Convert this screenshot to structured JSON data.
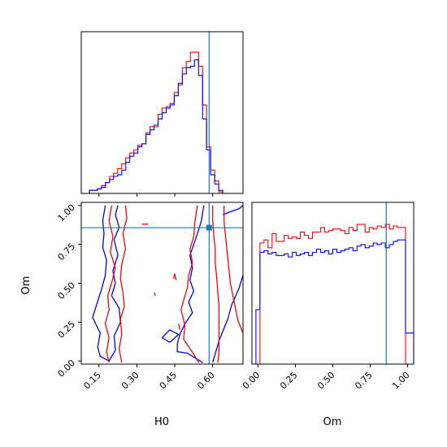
{
  "chart_data": [
    {
      "panel": "H0 marginal",
      "type": "step-histogram",
      "xlim": [
        0.08,
        0.72
      ],
      "x_ticks": [
        0.15,
        0.3,
        0.45,
        0.6
      ],
      "y_ticks_shown": false,
      "truth_x": 0.586,
      "bin_edges": [
        0.08,
        0.096,
        0.112,
        0.128,
        0.144,
        0.16,
        0.176,
        0.192,
        0.208,
        0.224,
        0.24,
        0.256,
        0.272,
        0.288,
        0.304,
        0.32,
        0.336,
        0.352,
        0.368,
        0.384,
        0.4,
        0.416,
        0.432,
        0.448,
        0.464,
        0.48,
        0.496,
        0.512,
        0.528,
        0.544,
        0.56,
        0.576,
        0.592,
        0.608,
        0.624,
        0.64,
        0.656,
        0.672,
        0.688,
        0.704,
        0.72
      ],
      "series": [
        {
          "color": "#ff0000",
          "values": [
            0.0,
            0.0,
            0.02,
            0.02,
            0.03,
            0.05,
            0.07,
            0.11,
            0.13,
            0.16,
            0.19,
            0.23,
            0.26,
            0.28,
            0.31,
            0.32,
            0.39,
            0.43,
            0.43,
            0.51,
            0.55,
            0.56,
            0.58,
            0.65,
            0.7,
            0.81,
            0.85,
            0.91,
            0.91,
            0.82,
            0.57,
            0.3,
            0.15,
            0.08,
            0.01,
            0.0,
            0.0,
            0.0,
            0.0,
            0.0
          ]
        },
        {
          "color": "#0000ff",
          "values": [
            0.0,
            0.0,
            0.02,
            0.02,
            0.03,
            0.04,
            0.07,
            0.09,
            0.11,
            0.12,
            0.15,
            0.2,
            0.24,
            0.26,
            0.3,
            0.32,
            0.38,
            0.41,
            0.44,
            0.48,
            0.52,
            0.55,
            0.57,
            0.63,
            0.71,
            0.77,
            0.81,
            0.82,
            0.86,
            0.76,
            0.48,
            0.28,
            0.12,
            0.06,
            0.02,
            0.0,
            0.0,
            0.0,
            0.0,
            0.0
          ]
        }
      ]
    },
    {
      "panel": "H0 vs Om joint",
      "type": "contour",
      "xlabel": "H0",
      "ylabel": "Om",
      "xlim": [
        0.08,
        0.72
      ],
      "ylim": [
        -0.02,
        1.02
      ],
      "x_ticks": [
        0.15,
        0.3,
        0.45,
        0.6
      ],
      "y_ticks": [
        0.0,
        0.25,
        0.5,
        0.75,
        1.0
      ],
      "truth": [
        0.586,
        0.857
      ],
      "series": [
        {
          "color": "#0000ff",
          "contours": [
            [
              [
                0.175,
                1.0
              ],
              [
                0.165,
                0.9
              ],
              [
                0.17,
                0.82
              ],
              [
                0.165,
                0.73
              ],
              [
                0.18,
                0.65
              ],
              [
                0.175,
                0.55
              ],
              [
                0.16,
                0.46
              ],
              [
                0.14,
                0.36
              ],
              [
                0.125,
                0.28
              ],
              [
                0.155,
                0.18
              ],
              [
                0.145,
                0.09
              ],
              [
                0.155,
                0.03
              ],
              [
                0.19,
                0.0
              ],
              [
                0.215,
                0.07
              ],
              [
                0.21,
                0.16
              ],
              [
                0.235,
                0.25
              ],
              [
                0.23,
                0.34
              ],
              [
                0.2,
                0.42
              ],
              [
                0.215,
                0.5
              ],
              [
                0.205,
                0.58
              ],
              [
                0.225,
                0.68
              ],
              [
                0.21,
                0.78
              ],
              [
                0.23,
                0.86
              ],
              [
                0.215,
                0.94
              ],
              [
                0.225,
                1.0
              ]
            ],
            [
              [
                0.565,
                1.0
              ],
              [
                0.555,
                0.9
              ],
              [
                0.54,
                0.82
              ],
              [
                0.525,
                0.75
              ],
              [
                0.51,
                0.68
              ],
              [
                0.52,
                0.6
              ],
              [
                0.51,
                0.52
              ],
              [
                0.525,
                0.45
              ],
              [
                0.505,
                0.38
              ],
              [
                0.52,
                0.31
              ],
              [
                0.49,
                0.24
              ],
              [
                0.47,
                0.17
              ],
              [
                0.46,
                0.11
              ],
              [
                0.46,
                0.06
              ],
              [
                0.5,
                0.05
              ],
              [
                0.53,
                0.02
              ],
              [
                0.56,
                -0.01
              ]
            ],
            [
              [
                0.6,
                -0.01
              ],
              [
                0.625,
                0.13
              ],
              [
                0.66,
                0.27
              ],
              [
                0.675,
                0.36
              ],
              [
                0.705,
                0.47
              ],
              [
                0.725,
                0.58
              ]
            ],
            [
              [
                0.64,
                0.94
              ],
              [
                0.67,
                0.96
              ],
              [
                0.705,
                0.98
              ],
              [
                0.72,
                1.0
              ]
            ],
            [
              [
                0.43,
                0.12
              ],
              [
                0.4,
                0.15
              ],
              [
                0.43,
                0.2
              ],
              [
                0.465,
                0.17
              ],
              [
                0.43,
                0.12
              ]
            ]
          ]
        },
        {
          "color": "#ff0000",
          "contours": [
            [
              [
                0.2,
                1.0
              ],
              [
                0.19,
                0.9
              ],
              [
                0.205,
                0.8
              ],
              [
                0.195,
                0.7
              ],
              [
                0.215,
                0.6
              ],
              [
                0.2,
                0.5
              ],
              [
                0.185,
                0.42
              ],
              [
                0.19,
                0.33
              ],
              [
                0.175,
                0.24
              ],
              [
                0.19,
                0.15
              ],
              [
                0.18,
                0.06
              ],
              [
                0.19,
                -0.01
              ]
            ],
            [
              [
                0.255,
                1.0
              ],
              [
                0.26,
                0.92
              ],
              [
                0.245,
                0.82
              ],
              [
                0.255,
                0.72
              ],
              [
                0.24,
                0.62
              ],
              [
                0.235,
                0.53
              ],
              [
                0.245,
                0.44
              ],
              [
                0.25,
                0.35
              ],
              [
                0.235,
                0.27
              ],
              [
                0.24,
                0.17
              ],
              [
                0.23,
                0.08
              ],
              [
                0.24,
                -0.01
              ]
            ],
            [
              [
                0.54,
                1.0
              ],
              [
                0.53,
                0.9
              ],
              [
                0.525,
                0.8
              ],
              [
                0.51,
                0.72
              ],
              [
                0.52,
                0.63
              ],
              [
                0.505,
                0.55
              ],
              [
                0.5,
                0.47
              ],
              [
                0.485,
                0.39
              ],
              [
                0.475,
                0.33
              ],
              [
                0.49,
                0.23
              ],
              [
                0.485,
                0.14
              ],
              [
                0.51,
                0.08
              ],
              [
                0.53,
                0.03
              ],
              [
                0.545,
                -0.01
              ]
            ],
            [
              [
                0.6,
                1.0
              ],
              [
                0.6,
                0.9
              ],
              [
                0.605,
                0.8
              ],
              [
                0.61,
                0.72
              ],
              [
                0.61,
                0.63
              ],
              [
                0.615,
                0.55
              ],
              [
                0.62,
                0.45
              ],
              [
                0.625,
                0.35
              ],
              [
                0.625,
                0.25
              ],
              [
                0.625,
                0.15
              ],
              [
                0.625,
                0.05
              ],
              [
                0.62,
                -0.01
              ]
            ],
            [
              [
                0.645,
                1.0
              ],
              [
                0.645,
                0.9
              ],
              [
                0.65,
                0.82
              ],
              [
                0.655,
                0.74
              ],
              [
                0.66,
                0.66
              ],
              [
                0.665,
                0.58
              ],
              [
                0.67,
                0.5
              ],
              [
                0.68,
                0.42
              ],
              [
                0.69,
                0.34
              ],
              [
                0.7,
                0.26
              ],
              [
                0.715,
                0.2
              ],
              [
                0.72,
                0.18
              ]
            ],
            [
              [
                0.32,
                0.88
              ],
              [
                0.345,
                0.88
              ]
            ],
            [
              [
                0.445,
                0.53
              ],
              [
                0.45,
                0.56
              ],
              [
                0.455,
                0.52
              ]
            ],
            [
              [
                0.465,
                0.24
              ],
              [
                0.47,
                0.2
              ]
            ],
            [
              [
                0.37,
                0.44
              ],
              [
                0.372,
                0.42
              ]
            ]
          ]
        }
      ]
    },
    {
      "panel": "Om marginal",
      "type": "step-histogram",
      "xlabel": "Om",
      "xlim": [
        -0.04,
        1.04
      ],
      "x_ticks": [
        0.0,
        0.25,
        0.5,
        0.75,
        1.0
      ],
      "y_ticks_shown": false,
      "truth_x": 0.857,
      "bin_edges": [
        -0.0135,
        0.0135,
        0.0405,
        0.0675,
        0.0945,
        0.1215,
        0.1485,
        0.1755,
        0.2025,
        0.2295,
        0.2565,
        0.2835,
        0.3105,
        0.3375,
        0.3645,
        0.3915,
        0.4185,
        0.4455,
        0.4725,
        0.4995,
        0.5265,
        0.5535,
        0.5805,
        0.6075,
        0.6345,
        0.6615,
        0.6885,
        0.7155,
        0.7425,
        0.7695,
        0.7965,
        0.8235,
        0.8505,
        0.8775,
        0.9045,
        0.9315,
        0.9585,
        0.9855,
        1.0125,
        1.04
      ],
      "series": [
        {
          "color": "#ff0000",
          "values": [
            0.0,
            0.78,
            0.8,
            0.75,
            0.84,
            0.79,
            0.79,
            0.83,
            0.81,
            0.82,
            0.81,
            0.85,
            0.83,
            0.81,
            0.85,
            0.85,
            0.88,
            0.85,
            0.86,
            0.87,
            0.87,
            0.86,
            0.84,
            0.88,
            0.86,
            0.9,
            0.9,
            0.85,
            0.88,
            0.87,
            0.89,
            0.88,
            0.9,
            0.87,
            0.89,
            0.88,
            0.88,
            0.0,
            0.0
          ]
        },
        {
          "color": "#0000ff",
          "values": [
            0.35,
            0.72,
            0.73,
            0.71,
            0.72,
            0.7,
            0.7,
            0.71,
            0.69,
            0.72,
            0.7,
            0.71,
            0.72,
            0.7,
            0.72,
            0.74,
            0.72,
            0.73,
            0.71,
            0.74,
            0.72,
            0.73,
            0.74,
            0.75,
            0.73,
            0.76,
            0.77,
            0.75,
            0.76,
            0.78,
            0.77,
            0.78,
            0.75,
            0.77,
            0.79,
            0.8,
            0.8,
            0.2,
            0.2
          ]
        }
      ]
    }
  ],
  "labels": {
    "h0_ticks": [
      "0.15",
      "0.30",
      "0.45",
      "0.60"
    ],
    "om_ticks": [
      "0.00",
      "0.25",
      "0.50",
      "0.75",
      "1.00"
    ],
    "xlabel_joint": "H0",
    "ylabel_joint": "Om",
    "xlabel_om": "Om"
  },
  "colors": {
    "series_a": "#ff0000",
    "series_b": "#0000ff",
    "truth_line": "#1f77b4",
    "axis": "#000000"
  }
}
